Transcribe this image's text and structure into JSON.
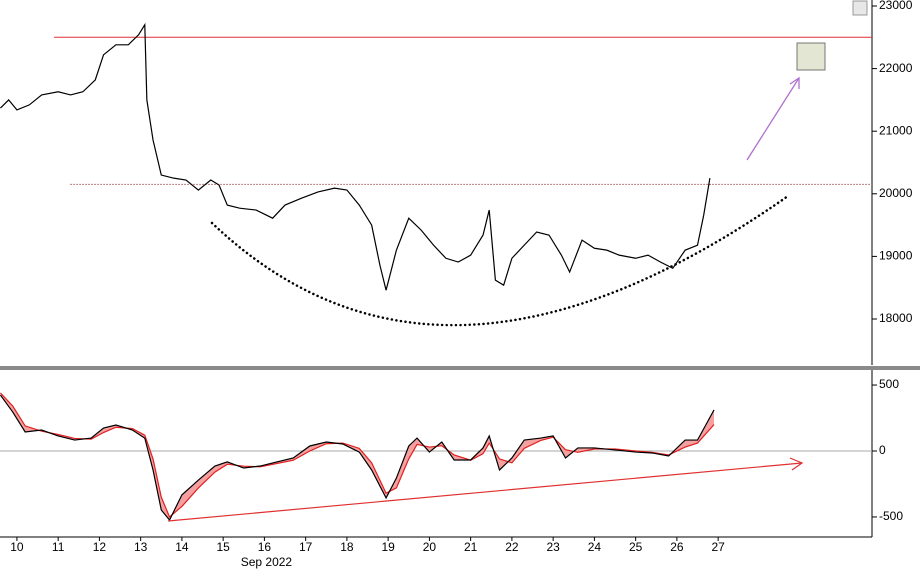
{
  "chart_data": [
    {
      "type": "line",
      "xlim": [
        9.59,
        30.73
      ],
      "ylim": [
        17265,
        23096
      ],
      "yticks": [
        18000,
        19000,
        20000,
        21000,
        22000,
        23000
      ],
      "hlines": [
        {
          "value": 22500,
          "from": 10.9,
          "color": "#e03030",
          "style": "solid"
        },
        {
          "value": 20150,
          "from": 11.3,
          "color": "#800000",
          "style": "dotted"
        }
      ],
      "series": [
        {
          "color": "#000000",
          "x": [
            9.6,
            9.8,
            10.0,
            10.3,
            10.6,
            11.0,
            11.3,
            11.6,
            11.9,
            12.1,
            12.4,
            12.7,
            12.95,
            13.1,
            13.15,
            13.3,
            13.5,
            13.8,
            14.1,
            14.4,
            14.7,
            14.9,
            15.1,
            15.4,
            15.8,
            16.2,
            16.5,
            16.9,
            17.3,
            17.7,
            18.0,
            18.3,
            18.6,
            18.8,
            18.95,
            19.2,
            19.5,
            19.8,
            20.1,
            20.4,
            20.7,
            21.0,
            21.3,
            21.45,
            21.6,
            21.8,
            22.0,
            22.3,
            22.6,
            22.9,
            23.2,
            23.4,
            23.7,
            24.0,
            24.3,
            24.6,
            25.0,
            25.3,
            25.6,
            25.9,
            26.2,
            26.5,
            26.65,
            26.8
          ],
          "values": [
            21370,
            21500,
            21340,
            21420,
            21580,
            21630,
            21580,
            21630,
            21820,
            22220,
            22380,
            22380,
            22540,
            22700,
            21500,
            20860,
            20300,
            20250,
            20220,
            20060,
            20220,
            20140,
            19820,
            19770,
            19740,
            19610,
            19820,
            19930,
            20030,
            20090,
            20060,
            19820,
            19500,
            18860,
            18460,
            19100,
            19610,
            19420,
            19180,
            18970,
            18910,
            19020,
            19340,
            19740,
            18620,
            18540,
            18970,
            19180,
            19390,
            19340,
            19020,
            18750,
            19260,
            19130,
            19100,
            19020,
            18970,
            19020,
            18910,
            18810,
            19100,
            19180,
            19660,
            20250
          ]
        }
      ]
    },
    {
      "type": "line",
      "xlim": [
        9.59,
        30.73
      ],
      "ylim": [
        -652,
        614
      ],
      "yticks": [
        -500,
        0,
        500
      ],
      "zero_line": true,
      "xticks": [
        10,
        11,
        12,
        13,
        14,
        15,
        16,
        17,
        18,
        19,
        20,
        21,
        22,
        23,
        24,
        25,
        26,
        27
      ],
      "x_label": "Sep 2022",
      "fill_between": "#f4a0a0",
      "x": [
        9.6,
        9.9,
        10.2,
        10.6,
        11.0,
        11.4,
        11.8,
        12.1,
        12.4,
        12.8,
        13.1,
        13.3,
        13.5,
        13.7,
        14.0,
        14.4,
        14.8,
        15.1,
        15.5,
        15.9,
        16.3,
        16.7,
        17.1,
        17.5,
        17.9,
        18.3,
        18.6,
        18.95,
        19.2,
        19.5,
        19.7,
        20.0,
        20.3,
        20.6,
        21.0,
        21.3,
        21.45,
        21.7,
        22.0,
        22.3,
        22.7,
        23.0,
        23.3,
        23.6,
        24.0,
        24.5,
        25.0,
        25.4,
        25.8,
        26.2,
        26.5,
        26.7,
        26.9
      ],
      "series": [
        {
          "color": "#000000",
          "values": [
            424,
            295,
            144,
            159,
            114,
            83,
            98,
            174,
            197,
            159,
            98,
            -144,
            -447,
            -523,
            -333,
            -220,
            -114,
            -83,
            -129,
            -114,
            -83,
            -53,
            38,
            68,
            53,
            -8,
            -144,
            -356,
            -205,
            38,
            98,
            -8,
            68,
            -68,
            -68,
            23,
            114,
            -144,
            -53,
            83,
            98,
            114,
            -53,
            23,
            23,
            8,
            -8,
            -15,
            -38,
            83,
            83,
            197,
            311
          ]
        },
        {
          "color": "#e02020",
          "values": [
            440,
            340,
            190,
            150,
            125,
            95,
            90,
            140,
            180,
            170,
            120,
            -60,
            -350,
            -500,
            -420,
            -280,
            -160,
            -100,
            -115,
            -120,
            -95,
            -70,
            0,
            55,
            60,
            20,
            -90,
            -320,
            -280,
            -60,
            50,
            30,
            40,
            -30,
            -70,
            -20,
            60,
            -60,
            -90,
            20,
            80,
            105,
            10,
            -10,
            15,
            15,
            0,
            -10,
            -30,
            30,
            60,
            130,
            200
          ]
        }
      ]
    }
  ]
}
